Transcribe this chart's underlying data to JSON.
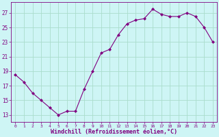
{
  "x": [
    0,
    1,
    2,
    3,
    4,
    5,
    6,
    7,
    8,
    9,
    10,
    11,
    12,
    13,
    14,
    15,
    16,
    17,
    18,
    19,
    20,
    21,
    22,
    23
  ],
  "y": [
    18.5,
    17.5,
    16.0,
    15.0,
    14.0,
    13.0,
    13.5,
    13.5,
    16.5,
    19.0,
    21.5,
    22.0,
    24.0,
    25.5,
    26.0,
    26.2,
    27.5,
    26.8,
    26.5,
    26.5,
    27.0,
    26.5,
    25.0,
    23.0
  ],
  "line_color": "#800080",
  "marker": "D",
  "marker_size": 2,
  "bg_color": "#cef5f5",
  "grid_color": "#aaddcc",
  "xlabel": "Windchill (Refroidissement éolien,°C)",
  "xlabel_color": "#800080",
  "ytick_labels": [
    "13",
    "15",
    "17",
    "19",
    "21",
    "23",
    "25",
    "27"
  ],
  "ytick_values": [
    13,
    15,
    17,
    19,
    21,
    23,
    25,
    27
  ],
  "ylim": [
    12.0,
    28.5
  ],
  "xlim": [
    -0.5,
    23.5
  ],
  "tick_color": "#800080",
  "spine_color": "#800080"
}
